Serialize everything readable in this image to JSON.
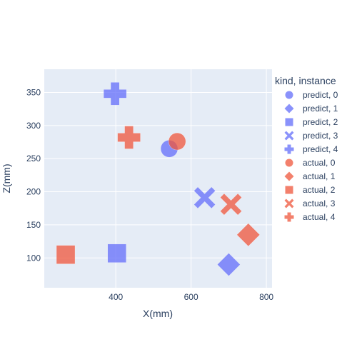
{
  "chart_data": {
    "type": "scatter",
    "xlabel": "X(mm)",
    "ylabel": "Z(mm)",
    "xlim": [
      210,
      815
    ],
    "ylim": [
      55,
      385
    ],
    "x_ticks": [
      400,
      600,
      800
    ],
    "y_ticks": [
      100,
      150,
      200,
      250,
      300,
      350
    ],
    "grid": true,
    "legend": {
      "title": "kind, instance",
      "placement": "right"
    },
    "colors": {
      "predict": "#636efa",
      "actual": "#ef553b",
      "plot_bg": "#e5ecf6",
      "grid": "#ffffff",
      "text": "#2a3f5f"
    },
    "series": [
      {
        "name": "predict, 0",
        "kind": "predict",
        "symbol": "circle",
        "x": 542,
        "y": 265
      },
      {
        "name": "predict, 1",
        "kind": "predict",
        "symbol": "diamond",
        "x": 700,
        "y": 90
      },
      {
        "name": "predict, 2",
        "kind": "predict",
        "symbol": "square",
        "x": 403,
        "y": 107
      },
      {
        "name": "predict, 3",
        "kind": "predict",
        "symbol": "x",
        "x": 636,
        "y": 191
      },
      {
        "name": "predict, 4",
        "kind": "predict",
        "symbol": "cross",
        "x": 398,
        "y": 348
      },
      {
        "name": "actual, 0",
        "kind": "actual",
        "symbol": "circle",
        "x": 563,
        "y": 276
      },
      {
        "name": "actual, 1",
        "kind": "actual",
        "symbol": "diamond",
        "x": 752,
        "y": 135
      },
      {
        "name": "actual, 2",
        "kind": "actual",
        "symbol": "square",
        "x": 267,
        "y": 105
      },
      {
        "name": "actual, 3",
        "kind": "actual",
        "symbol": "x",
        "x": 706,
        "y": 181
      },
      {
        "name": "actual, 4",
        "kind": "actual",
        "symbol": "cross",
        "x": 435,
        "y": 282
      }
    ]
  }
}
